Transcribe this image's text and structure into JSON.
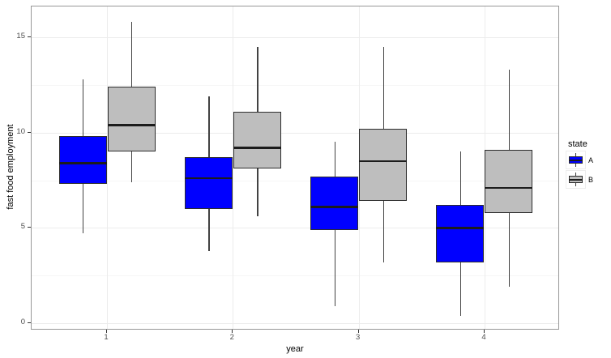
{
  "chart_data": {
    "type": "boxplot",
    "title": "",
    "xlabel": "year",
    "ylabel": "fast food employment",
    "categories": [
      "1",
      "2",
      "3",
      "4"
    ],
    "y_ticks": [
      0,
      5,
      10,
      15
    ],
    "y_minor_ticks": [
      2.5,
      7.5,
      12.5
    ],
    "ylim": [
      -0.3,
      16.6
    ],
    "grid": true,
    "legend_title": "state",
    "legend_position": "right",
    "series": [
      {
        "name": "A",
        "color": "#0000FF",
        "boxes": [
          {
            "category": "1",
            "whisker_low": 4.7,
            "q1": 7.3,
            "median": 8.4,
            "q3": 9.8,
            "whisker_high": 12.8
          },
          {
            "category": "2",
            "whisker_low": 3.8,
            "q1": 6.0,
            "median": 7.6,
            "q3": 8.7,
            "whisker_high": 11.9
          },
          {
            "category": "3",
            "whisker_low": 0.9,
            "q1": 4.9,
            "median": 6.1,
            "q3": 7.7,
            "whisker_high": 9.5
          },
          {
            "category": "4",
            "whisker_low": 0.4,
            "q1": 3.2,
            "median": 5.0,
            "q3": 6.2,
            "whisker_high": 9.0
          }
        ]
      },
      {
        "name": "B",
        "color": "#BEBEBE",
        "boxes": [
          {
            "category": "1",
            "whisker_low": 7.4,
            "q1": 9.0,
            "median": 10.4,
            "q3": 12.4,
            "whisker_high": 15.8
          },
          {
            "category": "2",
            "whisker_low": 5.6,
            "q1": 8.1,
            "median": 9.2,
            "q3": 11.1,
            "whisker_high": 14.5
          },
          {
            "category": "3",
            "whisker_low": 3.2,
            "q1": 6.4,
            "median": 8.5,
            "q3": 10.2,
            "whisker_high": 14.5
          },
          {
            "category": "4",
            "whisker_low": 1.9,
            "q1": 5.8,
            "median": 7.1,
            "q3": 9.1,
            "whisker_high": 13.3
          }
        ]
      }
    ]
  }
}
